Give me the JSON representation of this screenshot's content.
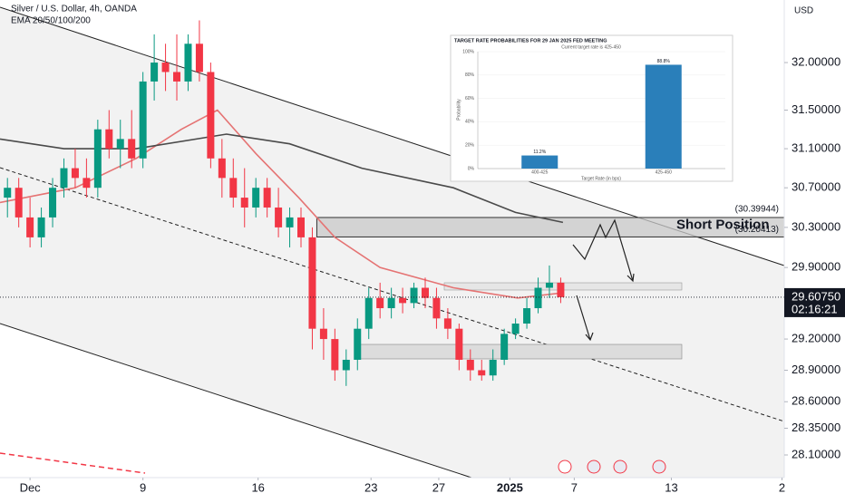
{
  "chart_data": [
    {
      "type": "candlestick",
      "title": "Silver / U.S. Dollar, 4h, OANDA",
      "subtitle": "EMA 20/50/100/200",
      "ylabel": "USD",
      "log_scale": true,
      "xlim": [
        -1.33,
        33.4
      ],
      "ylim": [
        27.89,
        32.67
      ],
      "xticks": [
        {
          "value": 0,
          "label": "Dec"
        },
        {
          "value": 5,
          "label": "9"
        },
        {
          "value": 10.1,
          "label": "16"
        },
        {
          "value": 15.1,
          "label": "23"
        },
        {
          "value": 18.1,
          "label": "27"
        },
        {
          "value": 21.25,
          "label": "2025"
        },
        {
          "value": 24.1,
          "label": "7"
        },
        {
          "value": 28.4,
          "label": "13"
        },
        {
          "value": 33.3,
          "label": "2"
        }
      ],
      "yticks": [
        {
          "value": 32,
          "label": "32.00000"
        },
        {
          "value": 31.5,
          "label": "31.50000"
        },
        {
          "value": 31.1,
          "label": "31.10000"
        },
        {
          "value": 30.7,
          "label": "30.70000"
        },
        {
          "value": 30.3,
          "label": "30.30000"
        },
        {
          "value": 29.9,
          "label": "29.90000"
        },
        {
          "value": 29.2,
          "label": "29.20000"
        },
        {
          "value": 28.9,
          "label": "28.90000"
        },
        {
          "value": 28.6,
          "label": "28.60000"
        },
        {
          "value": 28.35,
          "label": "28.35000"
        },
        {
          "value": 28.1,
          "label": "28.10000"
        }
      ],
      "up_color": "#089981",
      "down_color": "#f23645",
      "x": [
        -1,
        -0.5,
        0,
        0.5,
        1,
        1.5,
        2,
        2.5,
        3,
        3.5,
        4,
        4.5,
        5,
        5.5,
        6,
        6.5,
        7,
        7.5,
        8,
        8.5,
        9,
        9.5,
        10,
        10.5,
        11,
        11.5,
        12,
        12.5,
        13,
        13.5,
        14,
        14.5,
        15,
        15.5,
        16,
        16.5,
        17,
        17.5,
        18,
        18.5,
        19,
        19.5,
        20,
        20.5,
        21,
        21.5,
        22,
        22.5,
        23,
        23.5
      ],
      "open": [
        30.6,
        30.7,
        30.4,
        30.2,
        30.4,
        30.7,
        30.9,
        30.8,
        30.7,
        31.3,
        31.1,
        31.2,
        31.0,
        31.8,
        32.0,
        31.9,
        31.8,
        32.2,
        31.9,
        31.0,
        30.8,
        30.6,
        30.5,
        30.7,
        30.5,
        30.3,
        30.4,
        30.2,
        29.3,
        29.2,
        28.9,
        29.0,
        29.3,
        29.6,
        29.5,
        29.6,
        29.55,
        29.7,
        29.6,
        29.4,
        29.3,
        29.0,
        28.9,
        28.85,
        29.0,
        29.25,
        29.35,
        29.5,
        29.7,
        29.75
      ],
      "high": [
        30.8,
        30.8,
        30.6,
        30.5,
        30.8,
        31.0,
        31.1,
        31.0,
        31.4,
        31.5,
        31.4,
        31.5,
        31.9,
        32.3,
        32.2,
        32.3,
        32.3,
        32.45,
        32.0,
        31.2,
        31.0,
        30.9,
        30.8,
        30.8,
        30.7,
        30.5,
        30.5,
        30.3,
        29.5,
        29.3,
        29.1,
        29.4,
        29.7,
        29.75,
        29.7,
        29.7,
        29.75,
        29.8,
        29.7,
        29.5,
        29.35,
        29.1,
        29.0,
        29.1,
        29.3,
        29.4,
        29.6,
        29.8,
        29.92,
        29.8
      ],
      "low": [
        30.4,
        30.3,
        30.1,
        30.1,
        30.3,
        30.6,
        30.7,
        30.6,
        30.6,
        31.0,
        30.9,
        30.9,
        30.9,
        31.6,
        31.7,
        31.6,
        31.7,
        31.8,
        30.9,
        30.6,
        30.5,
        30.3,
        30.4,
        30.4,
        30.2,
        30.1,
        30.1,
        29.1,
        29.0,
        28.8,
        28.75,
        28.9,
        29.2,
        29.4,
        29.4,
        29.45,
        29.5,
        29.5,
        29.3,
        29.2,
        28.9,
        28.8,
        28.8,
        28.8,
        28.95,
        29.2,
        29.3,
        29.45,
        29.6,
        29.55
      ],
      "close": [
        30.7,
        30.4,
        30.2,
        30.4,
        30.7,
        30.9,
        30.8,
        30.7,
        31.3,
        31.1,
        31.2,
        31.0,
        31.8,
        32.0,
        31.9,
        31.8,
        32.2,
        31.9,
        31.0,
        30.8,
        30.6,
        30.5,
        30.7,
        30.5,
        30.3,
        30.4,
        30.2,
        29.3,
        29.2,
        28.9,
        29.0,
        29.3,
        29.6,
        29.5,
        29.6,
        29.55,
        29.7,
        29.6,
        29.4,
        29.3,
        29.0,
        28.9,
        28.85,
        29.0,
        29.25,
        29.35,
        29.5,
        29.7,
        29.75,
        29.6075
      ],
      "lines": [
        {
          "color": "#e57373",
          "x": [
            -1.33,
            2,
            4.7,
            6.7,
            8.3,
            10,
            11.9,
            13.5,
            15.5,
            18.75,
            21.6,
            23.6
          ],
          "values": [
            30.55,
            30.7,
            31.0,
            31.3,
            31.5,
            31.05,
            30.6,
            30.2,
            29.9,
            29.7,
            29.6,
            29.65
          ]
        },
        {
          "color": "#4a4a4a",
          "x": [
            -1.33,
            1.5,
            4.7,
            8.7,
            11.5,
            14.7,
            18.75,
            21.5,
            23.6
          ],
          "values": [
            31.2,
            31.1,
            31.1,
            31.25,
            31.15,
            30.9,
            30.7,
            30.45,
            30.35
          ]
        }
      ],
      "last_price": {
        "value": 29.6075,
        "label": "29.60750"
      },
      "countdown": "02:16:21",
      "annotations": [
        {
          "text": "Short Position"
        },
        {
          "value": 30.39944,
          "label": "(30.39944)"
        },
        {
          "value": 30.20413,
          "label": "(30.20413)"
        }
      ]
    },
    {
      "type": "bar",
      "title": "TARGET RATE PROBABILITIES FOR 29 JAN 2025 FED MEETING",
      "subtitle": "Current target rate is 425-450",
      "xlabel": "Target Rate (in bps)",
      "ylabel": "Probability",
      "categories": [
        "400-425",
        "425-450"
      ],
      "values": [
        11.2,
        88.8
      ],
      "value_labels": [
        "11.2%",
        "88.8%"
      ],
      "color": "#2a7fba",
      "ylim": [
        0,
        100
      ],
      "yticks": [
        {
          "value": 0,
          "label": "0%"
        },
        {
          "value": 20,
          "label": "20%"
        },
        {
          "value": 40,
          "label": "40%"
        },
        {
          "value": 60,
          "label": "60%"
        },
        {
          "value": 80,
          "label": "80%"
        },
        {
          "value": 100,
          "label": "100%"
        }
      ],
      "grid": true
    }
  ]
}
